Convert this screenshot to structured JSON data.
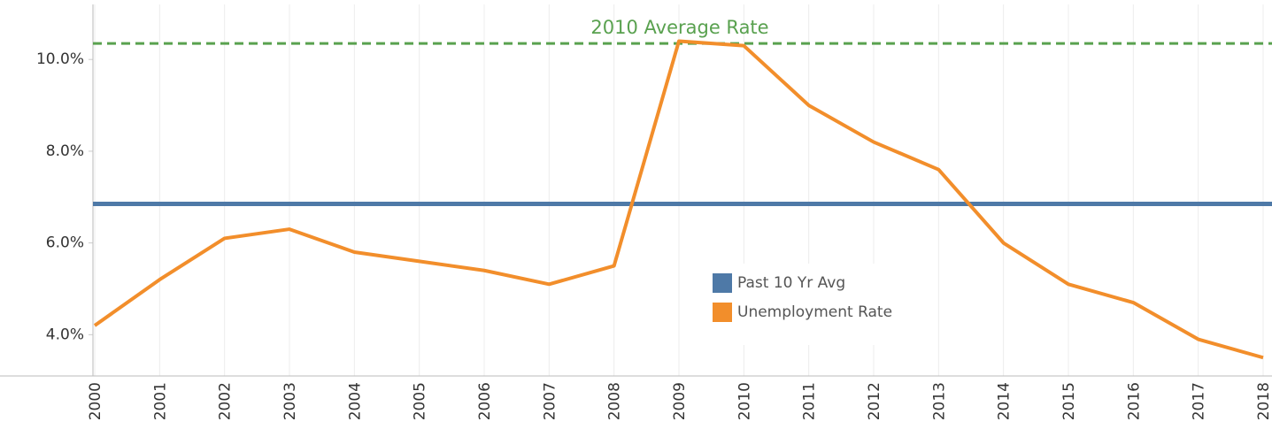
{
  "chart_data": {
    "type": "line",
    "categories": [
      "2000",
      "2001",
      "2002",
      "2003",
      "2004",
      "2005",
      "2006",
      "2007",
      "2008",
      "2009",
      "2010",
      "2011",
      "2012",
      "2013",
      "2014",
      "2015",
      "2016",
      "2017",
      "2018"
    ],
    "series": [
      {
        "name": "Unemployment Rate",
        "color": "#f28e2b",
        "values": [
          4.2,
          5.2,
          6.1,
          6.3,
          5.8,
          5.6,
          5.4,
          5.1,
          5.5,
          10.4,
          10.3,
          9.0,
          8.2,
          7.6,
          6.0,
          5.1,
          4.7,
          3.9,
          3.5
        ]
      }
    ],
    "reference_lines": [
      {
        "name": "Past 10 Yr Avg",
        "value": 6.85,
        "color": "#4e79a7",
        "style": "solid"
      },
      {
        "label": "2010 Average Rate",
        "value": 10.35,
        "color": "#59a14f",
        "style": "dashed"
      }
    ],
    "ylim": [
      3.1,
      11.2
    ],
    "yticks": [
      {
        "value": 4,
        "label": "4.0%"
      },
      {
        "value": 6,
        "label": "6.0%"
      },
      {
        "value": 8,
        "label": "8.0%"
      },
      {
        "value": 10,
        "label": "10.0%"
      }
    ],
    "grid": "vertical"
  }
}
